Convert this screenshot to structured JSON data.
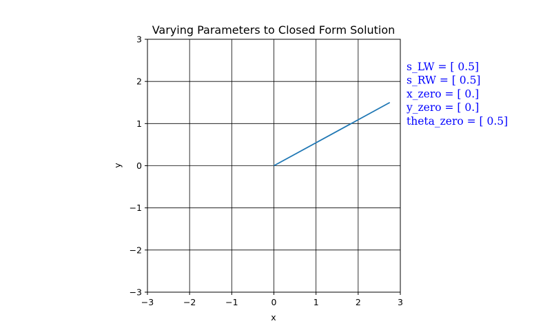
{
  "chart_data": {
    "type": "line",
    "title": "Varying Parameters to Closed Form Solution",
    "xlabel": "x",
    "ylabel": "y",
    "xlim": [
      -3,
      3
    ],
    "ylim": [
      -3,
      3
    ],
    "xticks": [
      -3,
      -2,
      -1,
      0,
      1,
      2,
      3
    ],
    "yticks": [
      -3,
      -2,
      -1,
      0,
      1,
      2,
      3
    ],
    "xtick_labels": [
      "−3",
      "−2",
      "−1",
      "0",
      "1",
      "2",
      "3"
    ],
    "ytick_labels": [
      "−3",
      "−2",
      "−1",
      "0",
      "1",
      "2",
      "3"
    ],
    "grid": true,
    "series": [
      {
        "x": [
          0,
          2.75
        ],
        "y": [
          0,
          1.5
        ],
        "color": "#1f77b4"
      }
    ],
    "annotations": [
      "s_LW = [ 0.5]",
      "s_RW = [ 0.5]",
      "x_zero = [ 0.]",
      "y_zero = [ 0.]",
      "theta_zero = [ 0.5]"
    ],
    "annotation_color": "#0000ff"
  }
}
